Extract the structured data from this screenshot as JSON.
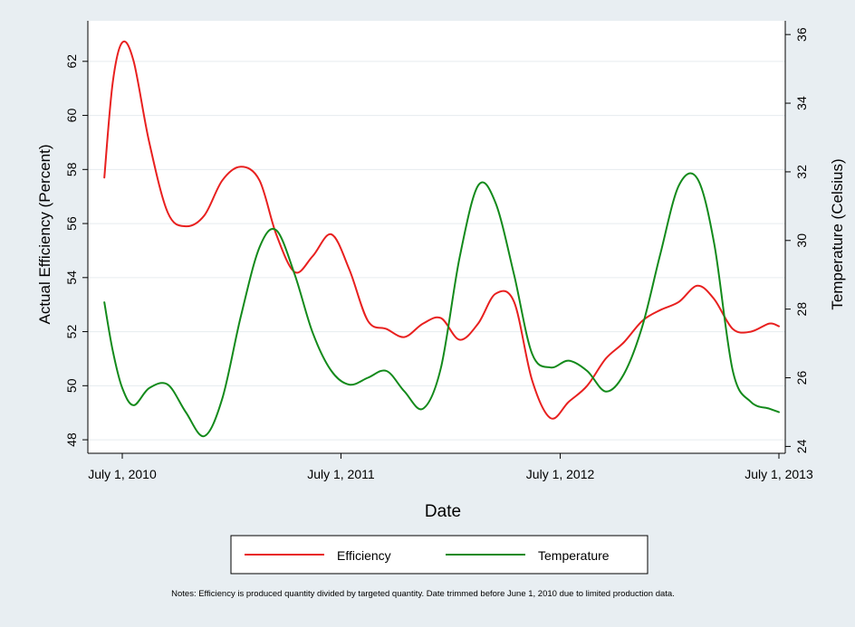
{
  "chart_data": {
    "type": "line",
    "xlabel": "Date",
    "ylabel_left": "Actual Efficiency (Percent)",
    "ylabel_right": "Temperature (Celsius)",
    "x_ticks": [
      "July 1, 2010",
      "July 1, 2011",
      "July 1, 2012",
      "July 1, 2013"
    ],
    "x_range": [
      "2010-06-01",
      "2013-07-01"
    ],
    "y_left_ticks": [
      "48",
      "50",
      "52",
      "54",
      "56",
      "58",
      "60",
      "62"
    ],
    "y_left_range": [
      47.5,
      63.5
    ],
    "y_right_ticks": [
      "24",
      "26",
      "28",
      "30",
      "32",
      "34",
      "36"
    ],
    "y_right_range": [
      23.8,
      36.4
    ],
    "grid": true,
    "legend_position": "bottom",
    "series": [
      {
        "name": "Efficiency",
        "axis": "left",
        "color": "#e8201f",
        "x": [
          "2010-06-01",
          "2010-06-15",
          "2010-07-01",
          "2010-07-20",
          "2010-08-15",
          "2010-09-15",
          "2010-10-15",
          "2010-11-15",
          "2010-12-15",
          "2011-01-15",
          "2011-02-15",
          "2011-03-15",
          "2011-04-15",
          "2011-05-15",
          "2011-06-15",
          "2011-07-15",
          "2011-08-15",
          "2011-09-15",
          "2011-10-15",
          "2011-11-15",
          "2011-12-15",
          "2012-01-15",
          "2012-02-15",
          "2012-03-15",
          "2012-04-15",
          "2012-05-15",
          "2012-06-15",
          "2012-07-15",
          "2012-08-15",
          "2012-09-15",
          "2012-10-15",
          "2012-11-15",
          "2012-12-15",
          "2013-01-15",
          "2013-02-15",
          "2013-03-15",
          "2013-04-15",
          "2013-05-15",
          "2013-06-15",
          "2013-07-01"
        ],
        "values": [
          57.7,
          61.2,
          62.7,
          62.0,
          59.0,
          56.4,
          55.9,
          56.3,
          57.6,
          58.1,
          57.6,
          55.6,
          54.2,
          54.8,
          55.6,
          54.3,
          52.4,
          52.1,
          51.8,
          52.3,
          52.5,
          51.7,
          52.3,
          53.4,
          53.1,
          50.2,
          48.8,
          49.4,
          50.0,
          51.0,
          51.6,
          52.4,
          52.8,
          53.1,
          53.7,
          53.2,
          52.1,
          52.0,
          52.3,
          52.2
        ]
      },
      {
        "name": "Temperature",
        "axis": "right",
        "color": "#138a1b",
        "x": [
          "2010-06-01",
          "2010-06-15",
          "2010-07-01",
          "2010-07-20",
          "2010-08-15",
          "2010-09-15",
          "2010-10-15",
          "2010-11-15",
          "2010-12-15",
          "2011-01-15",
          "2011-02-15",
          "2011-03-15",
          "2011-04-15",
          "2011-05-15",
          "2011-06-15",
          "2011-07-15",
          "2011-08-15",
          "2011-09-15",
          "2011-10-15",
          "2011-11-15",
          "2011-12-15",
          "2012-01-15",
          "2012-02-15",
          "2012-03-15",
          "2012-04-15",
          "2012-05-15",
          "2012-06-15",
          "2012-07-15",
          "2012-08-15",
          "2012-09-15",
          "2012-10-15",
          "2012-11-15",
          "2012-12-15",
          "2013-01-15",
          "2013-02-15",
          "2013-03-15",
          "2013-04-15",
          "2013-05-15",
          "2013-06-15",
          "2013-07-01"
        ],
        "values": [
          28.2,
          26.8,
          25.7,
          25.2,
          25.7,
          25.8,
          25.0,
          24.3,
          25.4,
          27.8,
          29.8,
          30.3,
          29.0,
          27.3,
          26.2,
          25.8,
          26.0,
          26.2,
          25.6,
          25.1,
          26.3,
          29.5,
          31.6,
          31.1,
          29.0,
          26.7,
          26.3,
          26.5,
          26.2,
          25.6,
          26.1,
          27.5,
          29.6,
          31.6,
          31.8,
          29.9,
          26.2,
          25.3,
          25.1,
          25.0
        ]
      }
    ],
    "notes": "Notes: Efficiency is produced quantity divided by targeted quantity. Date trimmed before June 1, 2010 due to limited production data."
  }
}
